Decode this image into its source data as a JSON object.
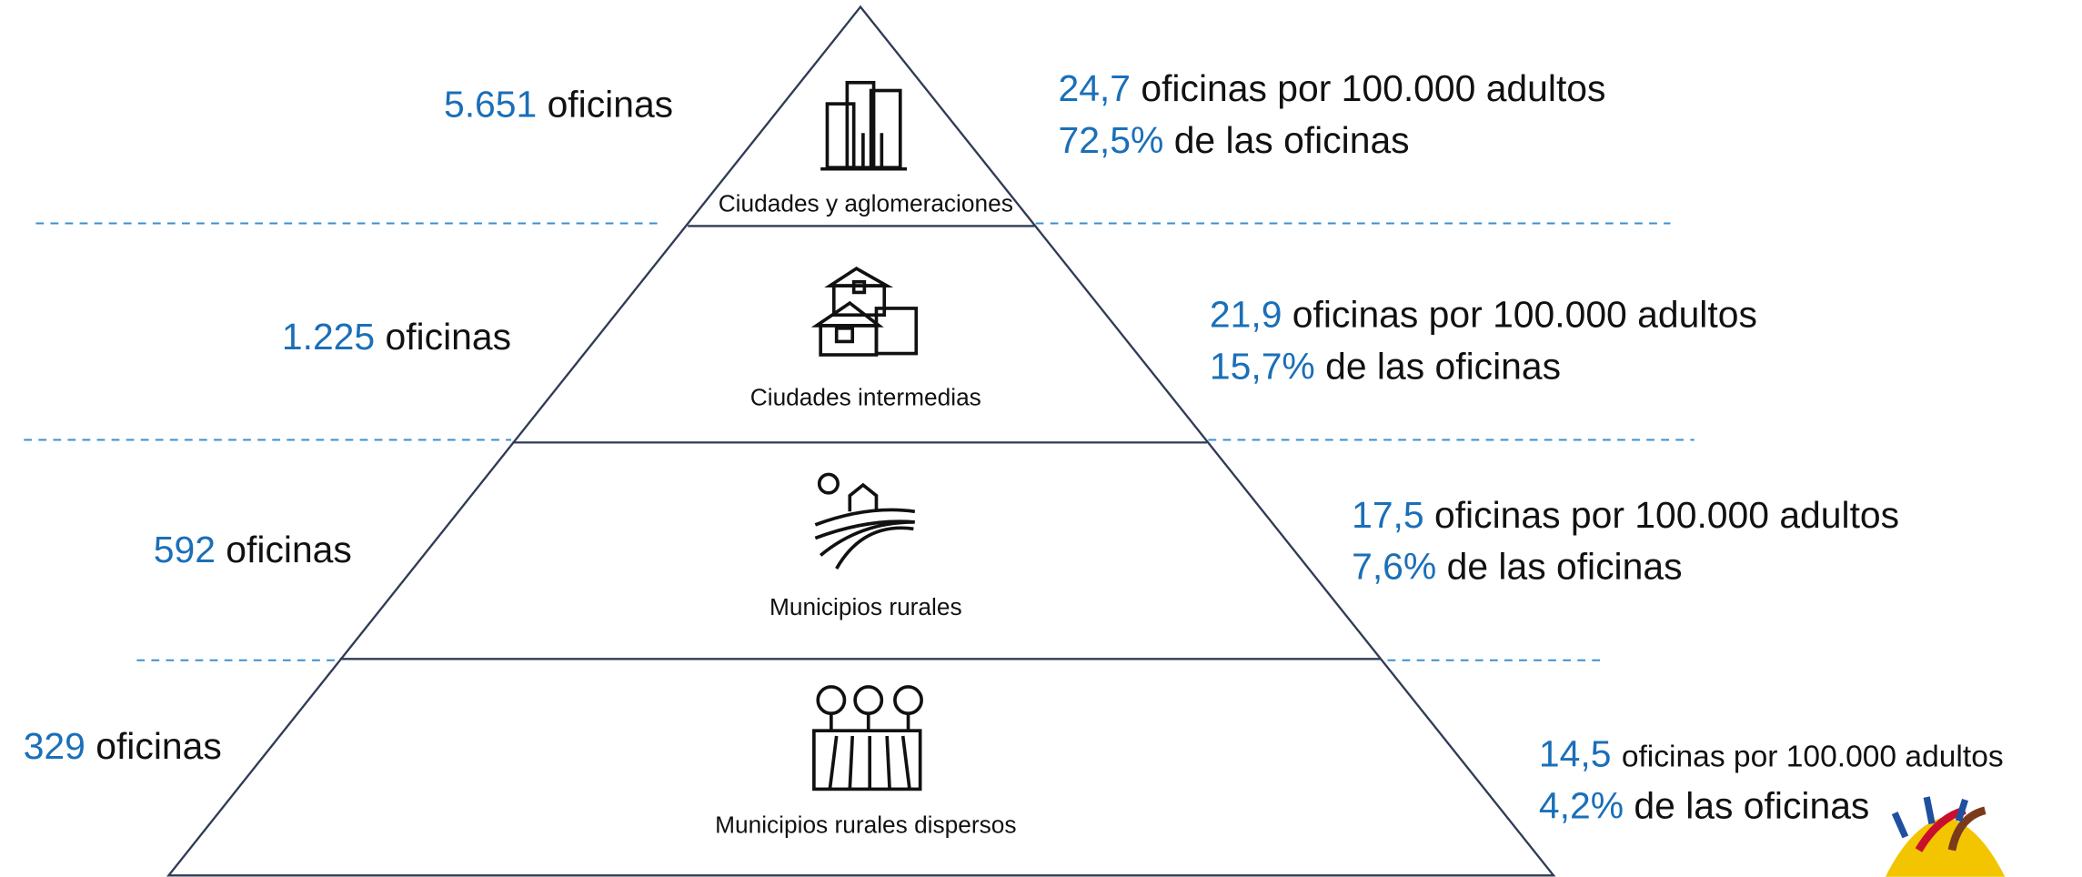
{
  "levels": [
    {
      "name": "Ciudades y aglomeraciones",
      "offices_value": "5.651",
      "offices_text": "oficinas",
      "density_value": "24,7",
      "density_text": "oficinas por 100.000 adultos",
      "share_value": "72,5%",
      "share_text": "de las oficinas"
    },
    {
      "name": "Ciudades intermedias",
      "offices_value": "1.225",
      "offices_text": "oficinas",
      "density_value": "21,9",
      "density_text": "oficinas por 100.000 adultos",
      "share_value": "15,7%",
      "share_text": "de las oficinas"
    },
    {
      "name": "Municipios rurales",
      "offices_value": "592",
      "offices_text": "oficinas",
      "density_value": "17,5",
      "density_text": "oficinas por 100.000 adultos",
      "share_value": "7,6%",
      "share_text": "de las oficinas"
    },
    {
      "name": "Municipios rurales dispersos",
      "offices_value": "329",
      "offices_text": "oficinas",
      "density_value": "14,5",
      "density_text": "oficinas por 100.000 adultos",
      "share_value": "4,2%",
      "share_text": "de las oficinas"
    }
  ]
}
